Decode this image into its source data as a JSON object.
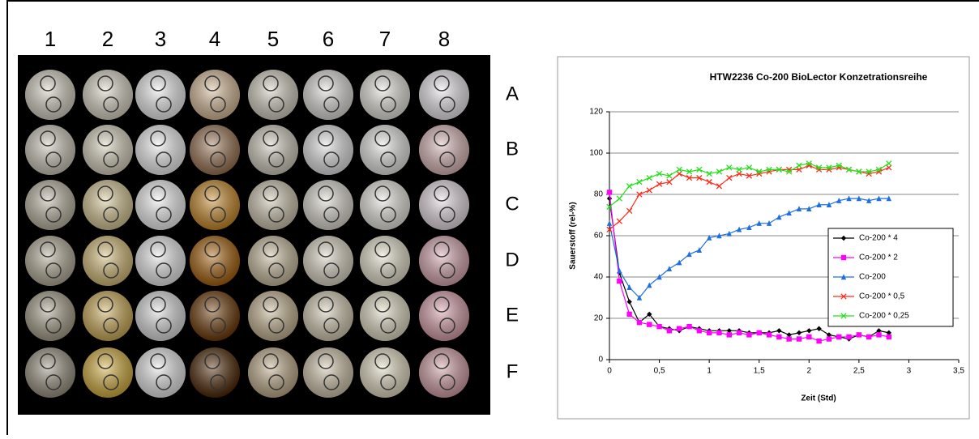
{
  "plate": {
    "columns": [
      "1",
      "2",
      "3",
      "4",
      "5",
      "6",
      "7",
      "8"
    ],
    "rows": [
      "A",
      "B",
      "C",
      "D",
      "E",
      "F"
    ]
  },
  "chart_data": {
    "type": "line",
    "title": "HTW2236 Co-200 BioLector Konzetrationsreihe",
    "x_label": "Zeit (Std)",
    "y_label": "Sauerstoff (rel-%)",
    "x": [
      0,
      0.1,
      0.2,
      0.3,
      0.4,
      0.5,
      0.6,
      0.7,
      0.8,
      0.9,
      1,
      1.1,
      1.2,
      1.3,
      1.4,
      1.5,
      1.6,
      1.7,
      1.8,
      1.9,
      2,
      2.1,
      2.2,
      2.3,
      2.4,
      2.5,
      2.6,
      2.7,
      2.8
    ],
    "series": [
      {
        "name": "Co-200 * 4",
        "color": "#000000",
        "marker": "diamond",
        "values": [
          78,
          42,
          28,
          18,
          22,
          16,
          15,
          14,
          16,
          15,
          14,
          14,
          14,
          14,
          13,
          13,
          13,
          14,
          12,
          13,
          14,
          15,
          12,
          11,
          10,
          12,
          11,
          14,
          13
        ]
      },
      {
        "name": "Co-200 * 2",
        "color": "#ff00ff",
        "marker": "square",
        "values": [
          81,
          38,
          22,
          18,
          17,
          16,
          14,
          15,
          16,
          14,
          13,
          13,
          12,
          13,
          12,
          13,
          12,
          11,
          10,
          10,
          11,
          9,
          10,
          11,
          11,
          12,
          11,
          12,
          11
        ]
      },
      {
        "name": "Co-200",
        "color": "#1f6fe0",
        "marker": "triangle",
        "values": [
          66,
          43,
          35,
          30,
          36,
          40,
          44,
          47,
          51,
          53,
          59,
          60,
          61,
          63,
          64,
          66,
          66,
          69,
          71,
          73,
          73,
          75,
          75,
          77,
          78,
          78,
          77,
          78,
          78
        ]
      },
      {
        "name": "Co-200 * 0,5",
        "color": "#ff2a1a",
        "marker": "cross",
        "values": [
          63,
          67,
          72,
          80,
          82,
          85,
          86,
          90,
          88,
          88,
          86,
          84,
          88,
          90,
          89,
          90,
          91,
          92,
          92,
          92,
          94,
          92,
          92,
          93,
          92,
          91,
          90,
          91,
          93
        ]
      },
      {
        "name": "Co-200 * 0,25",
        "color": "#22e01a",
        "marker": "cross",
        "values": [
          74,
          78,
          84,
          86,
          88,
          90,
          89,
          92,
          91,
          92,
          90,
          91,
          93,
          92,
          93,
          91,
          92,
          92,
          91,
          94,
          95,
          93,
          93,
          94,
          92,
          91,
          91,
          92,
          95
        ]
      }
    ],
    "xlim": [
      0,
      3.5
    ],
    "ylim": [
      0,
      120
    ],
    "xticks": [
      0,
      {
        "value": 0.5,
        "label": "0,5"
      },
      1,
      {
        "value": 1.5,
        "label": "1,5"
      },
      2,
      {
        "value": 2.5,
        "label": "2,5"
      },
      3,
      {
        "value": 3.5,
        "label": "3,5"
      }
    ],
    "yticks": [
      0,
      20,
      40,
      60,
      80,
      100,
      120
    ],
    "grid": true,
    "legend": "right"
  }
}
